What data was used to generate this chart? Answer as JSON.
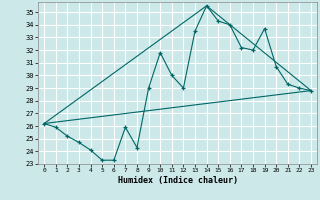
{
  "xlabel": "Humidex (Indice chaleur)",
  "xlim": [
    -0.5,
    23.5
  ],
  "ylim": [
    23,
    35.8
  ],
  "yticks": [
    23,
    24,
    25,
    26,
    27,
    28,
    29,
    30,
    31,
    32,
    33,
    34,
    35
  ],
  "xticks": [
    0,
    1,
    2,
    3,
    4,
    5,
    6,
    7,
    8,
    9,
    10,
    11,
    12,
    13,
    14,
    15,
    16,
    17,
    18,
    19,
    20,
    21,
    22,
    23
  ],
  "bg_color": "#cce8e8",
  "grid_color": "#aad4d4",
  "line_color": "#006666",
  "line1_x": [
    0,
    1,
    2,
    3,
    4,
    5,
    6,
    7,
    8,
    9,
    10,
    11,
    12,
    13,
    14,
    15,
    16,
    17,
    18,
    19,
    20,
    21,
    22,
    23
  ],
  "line1_y": [
    26.2,
    25.9,
    25.2,
    24.7,
    24.1,
    23.3,
    23.3,
    25.9,
    24.3,
    29.0,
    31.8,
    30.0,
    29.0,
    33.5,
    35.5,
    34.3,
    34.0,
    32.2,
    32.0,
    33.7,
    30.7,
    29.3,
    29.0,
    28.8
  ],
  "line2_x": [
    0,
    23
  ],
  "line2_y": [
    26.2,
    28.8
  ],
  "line3_x": [
    0,
    14,
    23
  ],
  "line3_y": [
    26.2,
    35.5,
    28.8
  ]
}
